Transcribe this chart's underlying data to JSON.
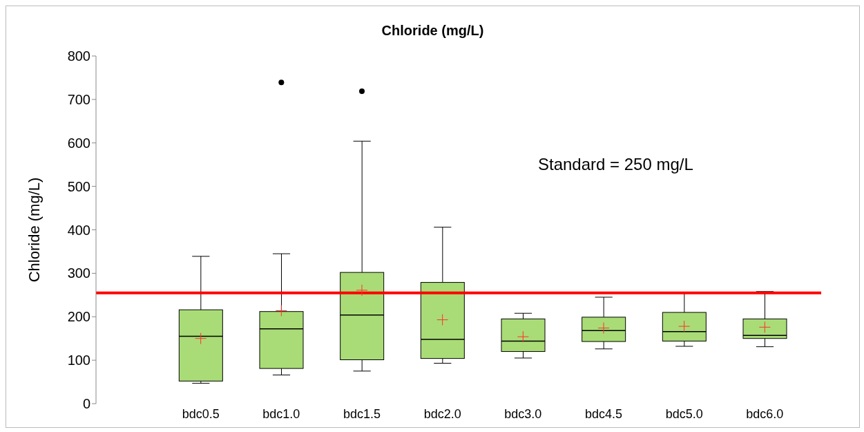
{
  "chart_data": {
    "type": "box",
    "title": "Chloride (mg/L)",
    "ylabel": "Chloride (mg/L)",
    "categories": [
      "bdc0.5",
      "bdc1.0",
      "bdc1.5",
      "bdc2.0",
      "bdc3.0",
      "bdc4.5",
      "bdc5.0",
      "bdc6.0"
    ],
    "color": "#a9dc76",
    "boxes": [
      {
        "low": 47,
        "q1": 52,
        "median": 155,
        "q3": 216,
        "high": 339,
        "mean": 150
      },
      {
        "low": 66,
        "q1": 81,
        "median": 172,
        "q3": 212,
        "high": 345,
        "mean": 214,
        "outliers": [
          739
        ]
      },
      {
        "low": 75,
        "q1": 101,
        "median": 204,
        "q3": 302,
        "high": 604,
        "mean": 261,
        "outliers": [
          719
        ]
      },
      {
        "low": 93,
        "q1": 104,
        "median": 148,
        "q3": 279,
        "high": 406,
        "mean": 193
      },
      {
        "low": 105,
        "q1": 120,
        "median": 144,
        "q3": 195,
        "high": 208,
        "mean": 154
      },
      {
        "low": 126,
        "q1": 143,
        "median": 168,
        "q3": 199,
        "high": 245,
        "mean": 174
      },
      {
        "low": 132,
        "q1": 144,
        "median": 166,
        "q3": 210,
        "high": 255,
        "mean": 178
      },
      {
        "low": 131,
        "q1": 150,
        "median": 157,
        "q3": 195,
        "high": 258,
        "mean": 176
      }
    ],
    "ylim": [
      0,
      800
    ],
    "yticks": [
      0,
      100,
      200,
      300,
      400,
      500,
      600,
      700,
      800
    ],
    "grid": false,
    "ref_lines": [
      {
        "axis": "y",
        "value": 255,
        "color": "#ff0000"
      }
    ],
    "annotations": [
      "Standard = 250 mg/L"
    ]
  }
}
